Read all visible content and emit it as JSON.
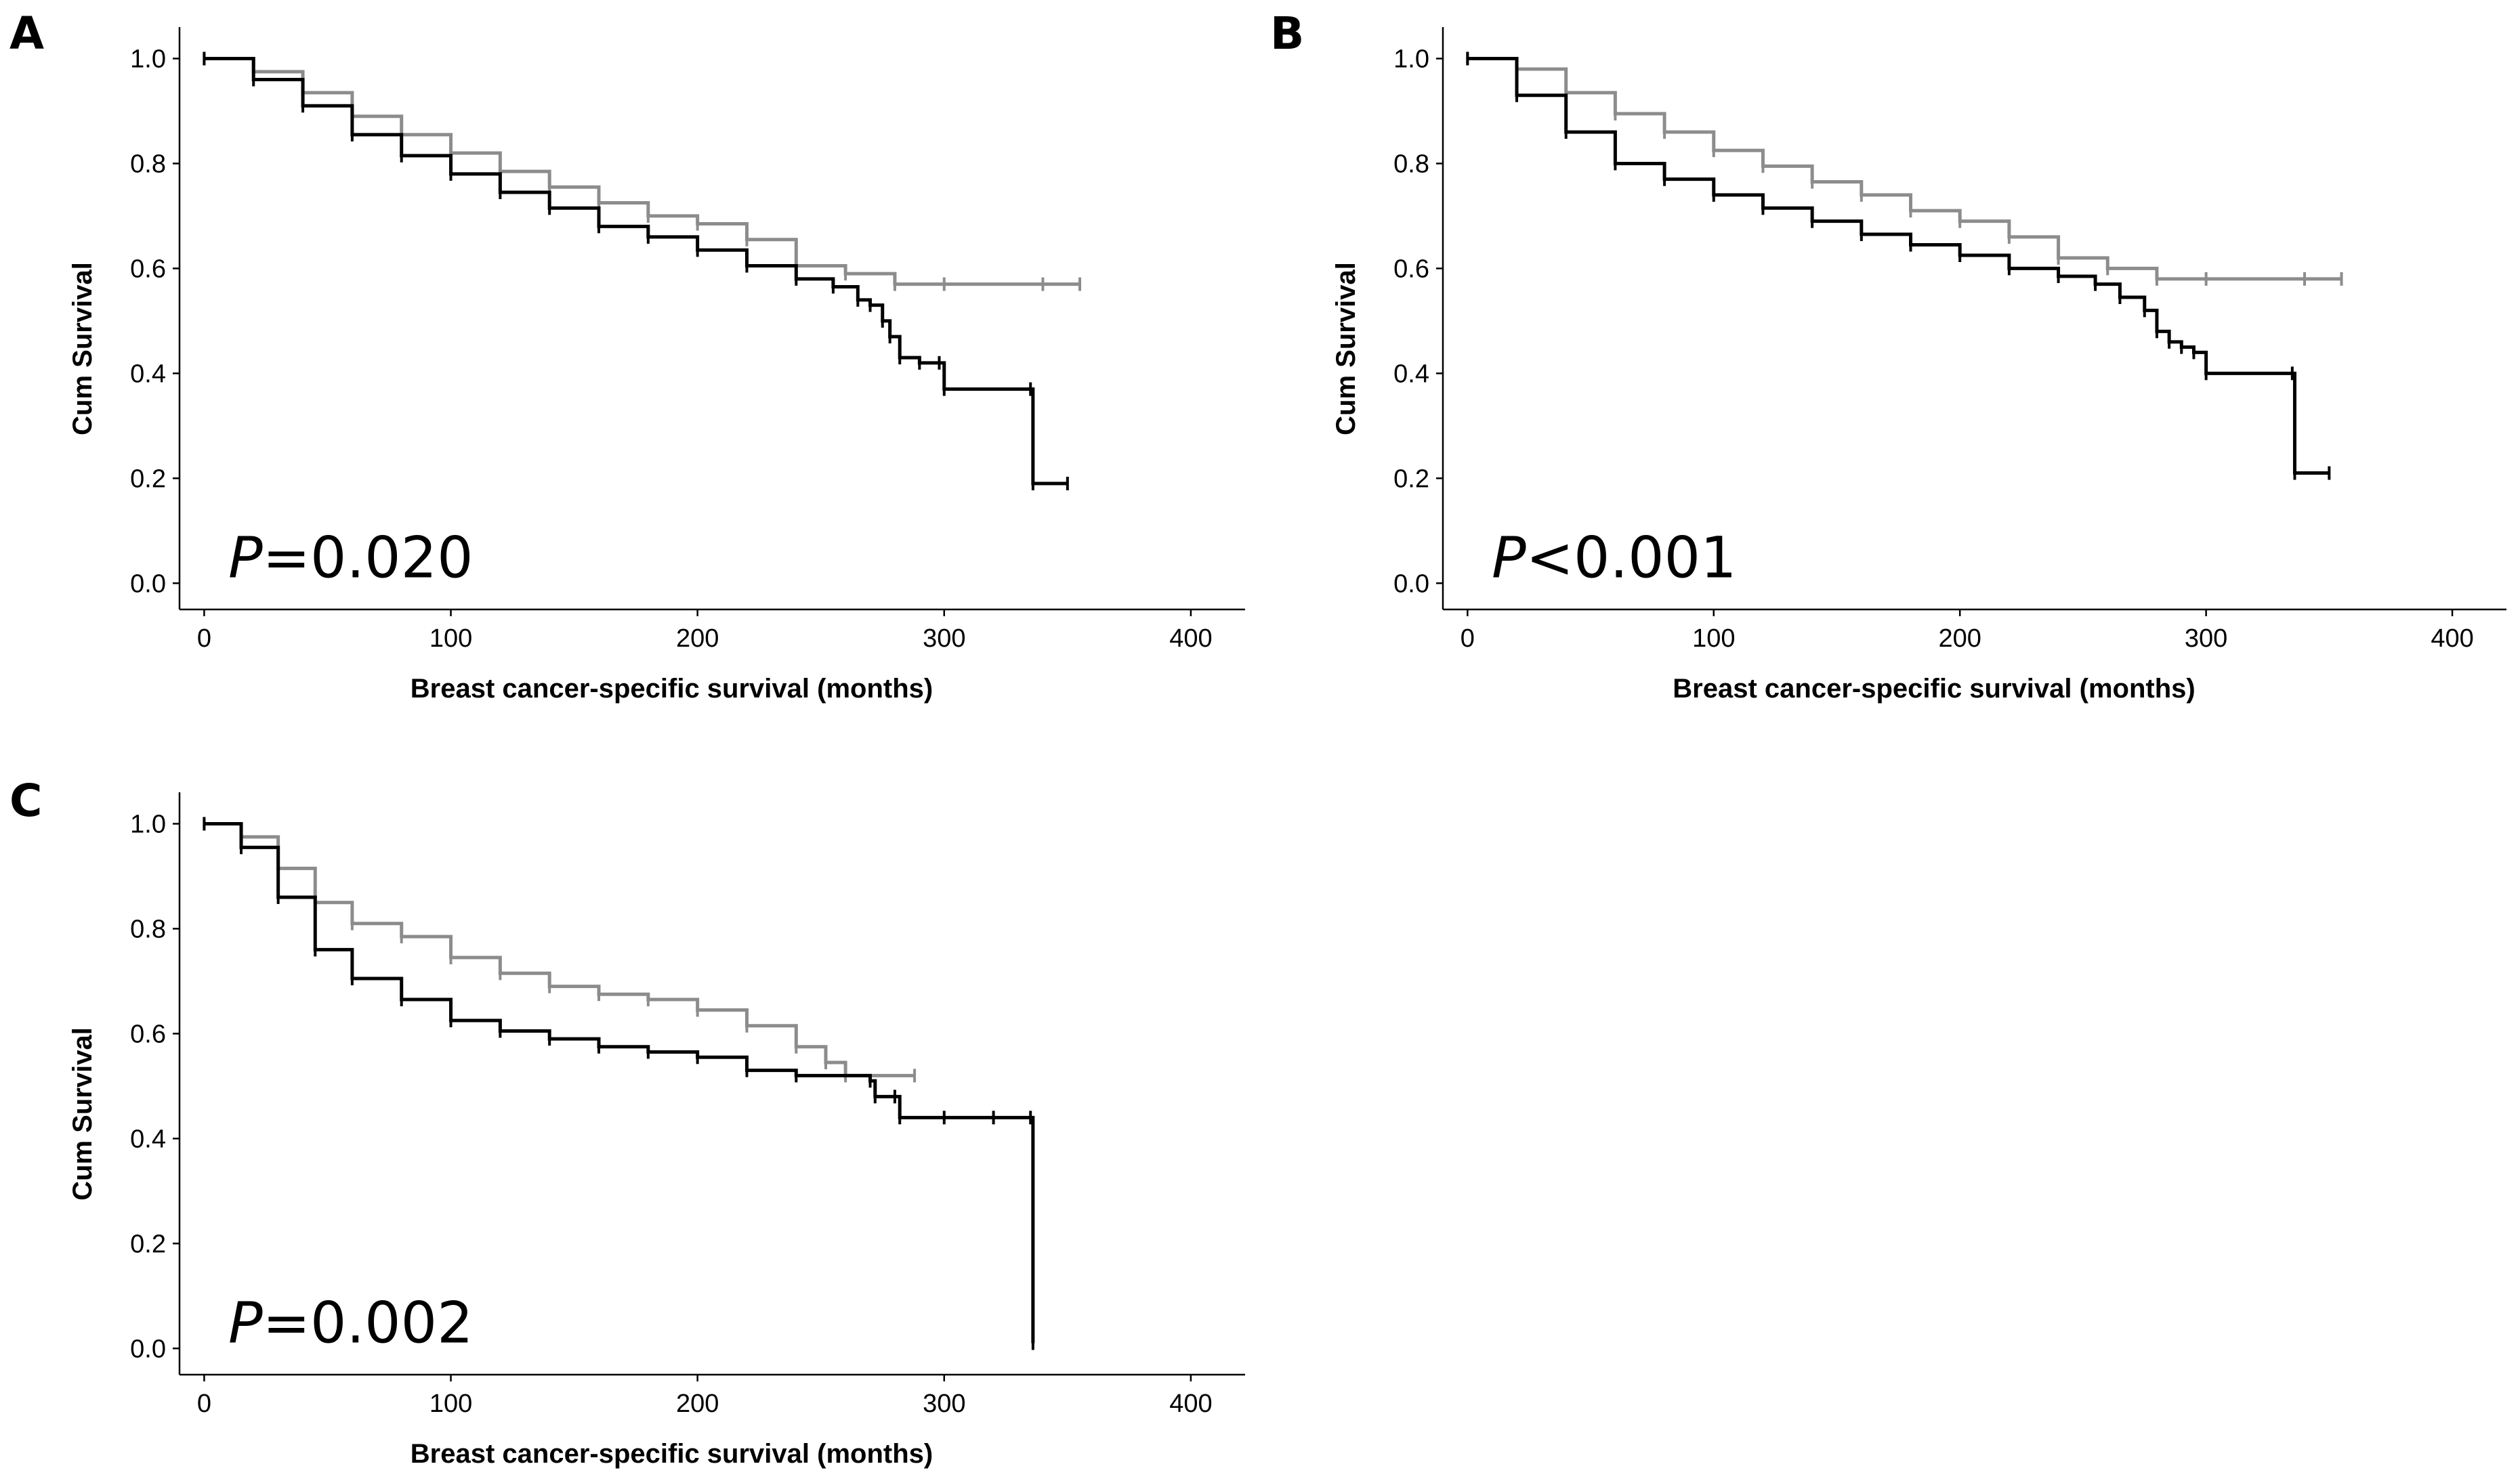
{
  "chart_data": [
    {
      "type": "line",
      "panel": "A",
      "ylabel": "Cum Survival",
      "xlabel": "Breast cancer-specific survival (months)",
      "xlim": [
        -10,
        422
      ],
      "ylim": [
        -0.05,
        1.06
      ],
      "xticks": [
        0,
        100,
        200,
        300,
        400
      ],
      "yticks": [
        0.0,
        0.2,
        0.4,
        0.6,
        0.8,
        1.0
      ],
      "xtick_labels": [
        "0",
        "100",
        "200",
        "300",
        "400"
      ],
      "ytick_labels": [
        "0.0",
        "0.2",
        "0.4",
        "0.6",
        "0.8",
        "1.0"
      ],
      "annotation": {
        "italic": "P",
        "rest": "=0.020"
      },
      "series": [
        {
          "name": "grey",
          "color": "#8c8c8c",
          "x": [
            0,
            20,
            40,
            60,
            80,
            100,
            120,
            140,
            160,
            180,
            200,
            220,
            240,
            260,
            280,
            300,
            340,
            355
          ],
          "y": [
            1.0,
            0.975,
            0.935,
            0.89,
            0.855,
            0.82,
            0.785,
            0.755,
            0.725,
            0.7,
            0.685,
            0.655,
            0.605,
            0.59,
            0.57,
            0.57,
            0.57,
            0.57
          ]
        },
        {
          "name": "black",
          "color": "#000000",
          "x": [
            0,
            20,
            40,
            60,
            80,
            100,
            120,
            140,
            160,
            180,
            200,
            220,
            240,
            255,
            265,
            270,
            275,
            278,
            282,
            290,
            298,
            300,
            335,
            336,
            350
          ],
          "y": [
            1.0,
            0.96,
            0.91,
            0.855,
            0.815,
            0.78,
            0.745,
            0.715,
            0.68,
            0.66,
            0.635,
            0.605,
            0.58,
            0.565,
            0.54,
            0.53,
            0.5,
            0.47,
            0.43,
            0.42,
            0.42,
            0.37,
            0.37,
            0.19,
            0.19
          ]
        }
      ]
    },
    {
      "type": "line",
      "panel": "B",
      "ylabel": "Cum Survival",
      "xlabel": "Breast cancer-specific survival (months)",
      "xlim": [
        -10,
        422
      ],
      "ylim": [
        -0.05,
        1.06
      ],
      "xticks": [
        0,
        100,
        200,
        300,
        400
      ],
      "yticks": [
        0.0,
        0.2,
        0.4,
        0.6,
        0.8,
        1.0
      ],
      "xtick_labels": [
        "0",
        "100",
        "200",
        "300",
        "400"
      ],
      "ytick_labels": [
        "0.0",
        "0.2",
        "0.4",
        "0.6",
        "0.8",
        "1.0"
      ],
      "annotation": {
        "italic": "P",
        "rest": "<0.001"
      },
      "series": [
        {
          "name": "grey",
          "color": "#8c8c8c",
          "x": [
            0,
            20,
            40,
            60,
            80,
            100,
            120,
            140,
            160,
            180,
            200,
            220,
            240,
            260,
            280,
            300,
            340,
            355
          ],
          "y": [
            1.0,
            0.98,
            0.935,
            0.895,
            0.86,
            0.825,
            0.795,
            0.765,
            0.74,
            0.71,
            0.69,
            0.66,
            0.62,
            0.6,
            0.58,
            0.58,
            0.58,
            0.58
          ]
        },
        {
          "name": "black",
          "color": "#000000",
          "x": [
            0,
            20,
            40,
            60,
            80,
            100,
            120,
            140,
            160,
            180,
            200,
            220,
            240,
            255,
            265,
            275,
            280,
            285,
            290,
            295,
            300,
            335,
            336,
            350
          ],
          "y": [
            1.0,
            0.93,
            0.86,
            0.8,
            0.77,
            0.74,
            0.715,
            0.69,
            0.665,
            0.645,
            0.625,
            0.6,
            0.585,
            0.57,
            0.545,
            0.52,
            0.48,
            0.46,
            0.45,
            0.44,
            0.4,
            0.4,
            0.21,
            0.21
          ]
        }
      ]
    },
    {
      "type": "line",
      "panel": "C",
      "ylabel": "Cum Survival",
      "xlabel": "Breast cancer-specific survival (months)",
      "xlim": [
        -10,
        422
      ],
      "ylim": [
        -0.05,
        1.06
      ],
      "xticks": [
        0,
        100,
        200,
        300,
        400
      ],
      "yticks": [
        0.0,
        0.2,
        0.4,
        0.6,
        0.8,
        1.0
      ],
      "xtick_labels": [
        "0",
        "100",
        "200",
        "300",
        "400"
      ],
      "ytick_labels": [
        "0.0",
        "0.2",
        "0.4",
        "0.6",
        "0.8",
        "1.0"
      ],
      "annotation": {
        "italic": "P",
        "rest": "=0.002"
      },
      "series": [
        {
          "name": "grey",
          "color": "#8c8c8c",
          "x": [
            0,
            15,
            30,
            45,
            60,
            80,
            100,
            120,
            140,
            160,
            180,
            200,
            220,
            240,
            252,
            260,
            288
          ],
          "y": [
            1.0,
            0.975,
            0.915,
            0.85,
            0.81,
            0.785,
            0.745,
            0.715,
            0.69,
            0.675,
            0.665,
            0.645,
            0.615,
            0.575,
            0.545,
            0.52,
            0.52
          ]
        },
        {
          "name": "black",
          "color": "#000000",
          "x": [
            0,
            15,
            30,
            45,
            60,
            80,
            100,
            120,
            140,
            160,
            180,
            200,
            220,
            240,
            270,
            272,
            280,
            282,
            300,
            320,
            335,
            336
          ],
          "y": [
            1.0,
            0.955,
            0.86,
            0.76,
            0.705,
            0.665,
            0.625,
            0.605,
            0.59,
            0.575,
            0.565,
            0.555,
            0.53,
            0.52,
            0.51,
            0.48,
            0.48,
            0.44,
            0.44,
            0.44,
            0.44,
            0.01
          ]
        }
      ]
    }
  ]
}
